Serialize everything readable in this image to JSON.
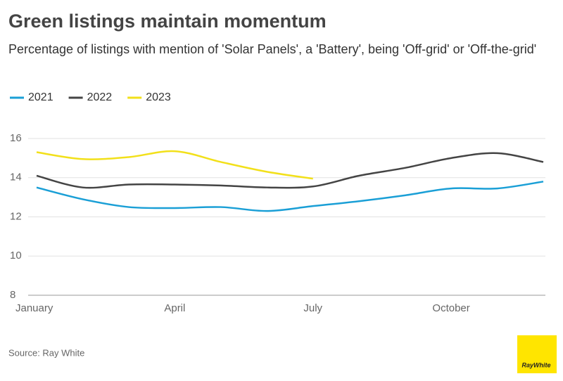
{
  "chart_data": {
    "type": "line",
    "title": "Green listings maintain momentum",
    "subtitle": "Percentage of listings with mention of 'Solar Panels', a 'Battery', being 'Off-grid' or 'Off-the-grid'",
    "source": "Source: Ray White",
    "logo": "RayWhite",
    "categories": [
      "January",
      null,
      null,
      "April",
      null,
      null,
      "July",
      null,
      null,
      "October",
      null,
      null
    ],
    "series": [
      {
        "name": "2021",
        "color": "#1a9fd6",
        "values": [
          13.5,
          12.9,
          12.5,
          12.45,
          12.5,
          12.3,
          12.55,
          12.8,
          13.1,
          13.45,
          13.45,
          13.8
        ]
      },
      {
        "name": "2022",
        "color": "#444444",
        "values": [
          14.1,
          13.5,
          13.65,
          13.65,
          13.6,
          13.5,
          13.55,
          14.1,
          14.5,
          15.0,
          15.25,
          14.8
        ]
      },
      {
        "name": "2023",
        "color": "#f2e01a",
        "values": [
          15.3,
          14.95,
          15.05,
          15.35,
          14.8,
          14.3,
          13.95,
          null,
          null,
          null,
          null,
          null
        ]
      }
    ],
    "ylim": [
      8,
      16
    ],
    "yticks": [
      8,
      10,
      12,
      14,
      16
    ],
    "grid": true,
    "legend": "top-left"
  }
}
